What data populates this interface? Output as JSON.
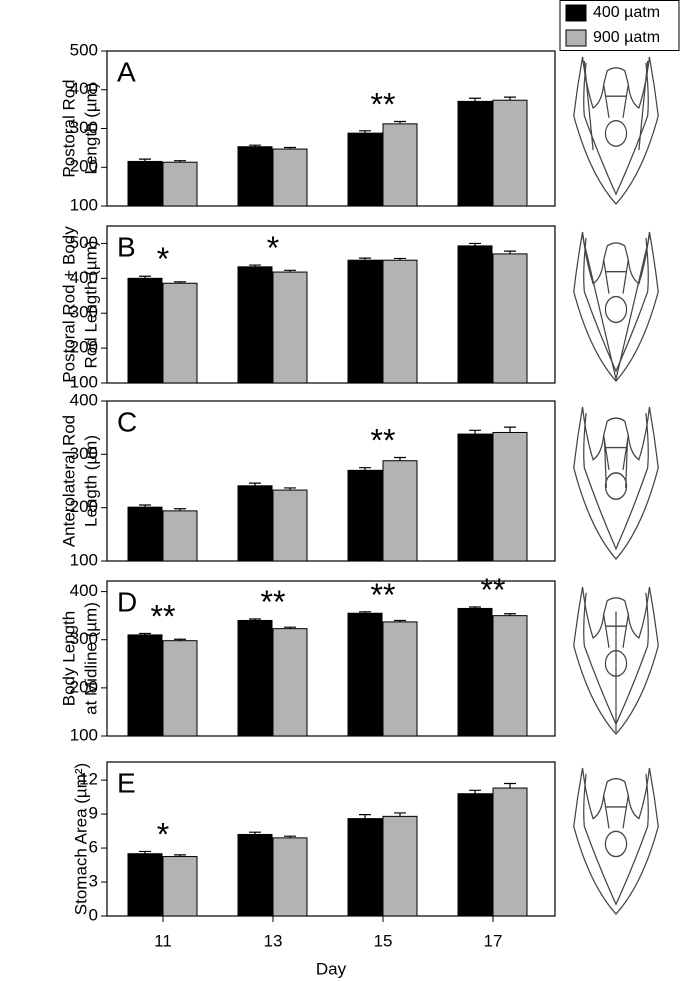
{
  "chart_data": [
    {
      "type": "bar",
      "panel": "A",
      "ylabel": [
        "Postoral Rod",
        "Length (µm)"
      ],
      "series": [
        {
          "name": "400 µatm",
          "color": "#000000",
          "values": [
            215,
            253,
            288,
            370
          ],
          "errors": [
            6,
            4,
            6,
            8
          ]
        },
        {
          "name": "900 µatm",
          "color": "#b3b3b3",
          "values": [
            213,
            247,
            312,
            373
          ],
          "errors": [
            4,
            4,
            6,
            8
          ]
        }
      ],
      "annotations": [
        null,
        null,
        "**",
        null
      ],
      "ylim": [
        100,
        500
      ],
      "yticks": [
        100,
        200,
        300,
        400,
        500
      ]
    },
    {
      "type": "bar",
      "panel": "B",
      "ylabel": [
        "Postoral Rod + Body",
        "Rod Length (µm)"
      ],
      "series": [
        {
          "name": "400 µatm",
          "color": "#000000",
          "values": [
            400,
            433,
            452,
            493
          ],
          "errors": [
            6,
            5,
            6,
            7
          ]
        },
        {
          "name": "900 µatm",
          "color": "#b3b3b3",
          "values": [
            386,
            418,
            452,
            470
          ],
          "errors": [
            4,
            5,
            5,
            8
          ]
        }
      ],
      "annotations": [
        "*",
        "*",
        null,
        null
      ],
      "ylim": [
        100,
        550
      ],
      "yticks": [
        100,
        200,
        300,
        400,
        500
      ]
    },
    {
      "type": "bar",
      "panel": "C",
      "ylabel": [
        "Anterolateral Rod",
        "Length (µm)"
      ],
      "series": [
        {
          "name": "400 µatm",
          "color": "#000000",
          "values": [
            201,
            241,
            270,
            338
          ],
          "errors": [
            4,
            5,
            5,
            7
          ]
        },
        {
          "name": "900 µatm",
          "color": "#b3b3b3",
          "values": [
            194,
            233,
            288,
            341
          ],
          "errors": [
            4,
            4,
            6,
            10
          ]
        }
      ],
      "annotations": [
        null,
        null,
        "**",
        null
      ],
      "ylim": [
        100,
        400
      ],
      "yticks": [
        100,
        200,
        300,
        400
      ]
    },
    {
      "type": "bar",
      "panel": "D",
      "ylabel": [
        "Body Length",
        "at Midline (µm)"
      ],
      "series": [
        {
          "name": "400 µatm",
          "color": "#000000",
          "values": [
            310,
            340,
            355,
            365
          ],
          "errors": [
            3,
            3,
            3,
            3
          ]
        },
        {
          "name": "900 µatm",
          "color": "#b3b3b3",
          "values": [
            298,
            323,
            337,
            350
          ],
          "errors": [
            3,
            3,
            3,
            4
          ]
        }
      ],
      "annotations": [
        "**",
        "**",
        "**",
        "**"
      ],
      "ylim": [
        100,
        422
      ],
      "yticks": [
        100,
        200,
        300,
        400
      ]
    },
    {
      "type": "bar",
      "panel": "E",
      "ylabel": [
        "Stomach Area (µm²)"
      ],
      "categories": [
        "11",
        "13",
        "15",
        "17"
      ],
      "xlabel": "Day",
      "series": [
        {
          "name": "400 µatm",
          "color": "#000000",
          "values": [
            5.5,
            7.2,
            8.6,
            10.8
          ],
          "errors": [
            0.2,
            0.2,
            0.35,
            0.3
          ]
        },
        {
          "name": "900 µatm",
          "color": "#b3b3b3",
          "values": [
            5.25,
            6.9,
            8.8,
            11.3
          ],
          "errors": [
            0.15,
            0.15,
            0.3,
            0.4
          ]
        }
      ],
      "annotations": [
        "*",
        null,
        null,
        null
      ],
      "ylim": [
        0,
        13.6
      ],
      "yticks": [
        0,
        3,
        6,
        9,
        12
      ]
    }
  ]
}
